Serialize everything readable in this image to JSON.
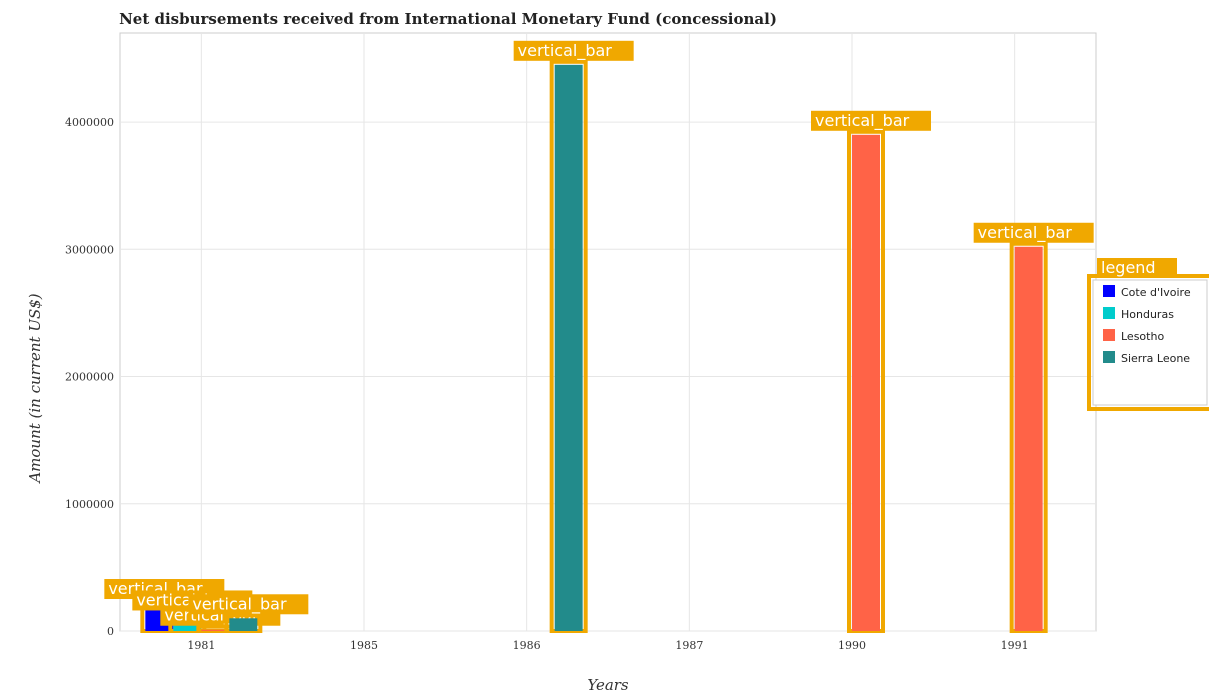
{
  "chart_data": {
    "type": "bar",
    "title": "Net disbursements received from International Monetary Fund (concessional)",
    "xlabel": "Years",
    "ylabel": "Amount (in current US$)",
    "categories": [
      "1981",
      "1985",
      "1986",
      "1987",
      "1990",
      "1991"
    ],
    "ylim": [
      0,
      4700000
    ],
    "yticks": [
      0,
      1000000,
      2000000,
      3000000,
      4000000
    ],
    "ytick_labels": [
      "0",
      "1000000",
      "2000000",
      "3000000",
      "4000000"
    ],
    "grid": true,
    "legend_position": "right",
    "series": [
      {
        "name": "Cote d'Ivoire",
        "color": "#0000ff",
        "values": [
          220000,
          0,
          0,
          0,
          0,
          0
        ]
      },
      {
        "name": "Honduras",
        "color": "#00cccc",
        "values": [
          130000,
          0,
          0,
          0,
          0,
          0
        ]
      },
      {
        "name": "Lesotho",
        "color": "#ff6347",
        "values": [
          10000,
          0,
          0,
          0,
          3900000,
          3020000
        ]
      },
      {
        "name": "Sierra Leone",
        "color": "#228b8b",
        "values": [
          100000,
          0,
          4450000,
          0,
          0,
          0
        ]
      }
    ]
  },
  "annotations": {
    "bar_tag": "vertical_bar",
    "legend_tag": "legend"
  }
}
